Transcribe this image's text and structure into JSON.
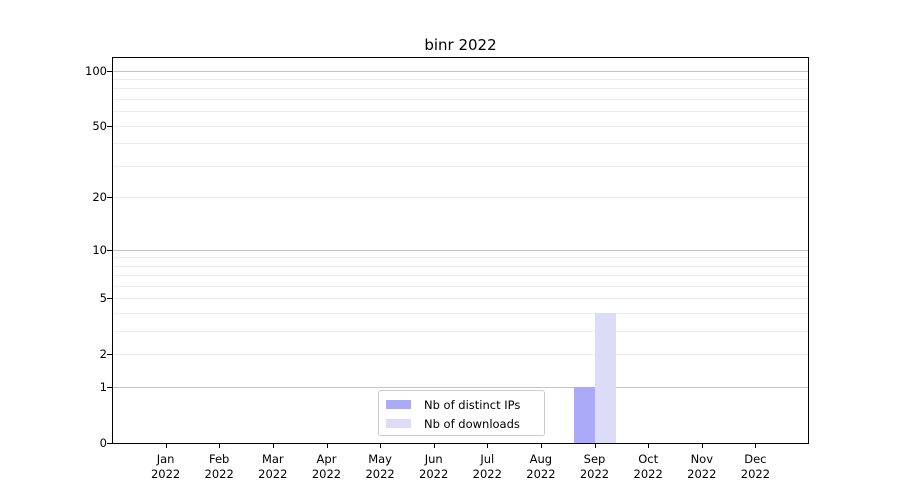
{
  "figure": {
    "background": "#ffffff"
  },
  "chart_data": {
    "type": "bar",
    "title": "binr 2022",
    "categories": [
      "Jan 2022",
      "Feb 2022",
      "Mar 2022",
      "Apr 2022",
      "May 2022",
      "Jun 2022",
      "Jul 2022",
      "Aug 2022",
      "Sep 2022",
      "Oct 2022",
      "Nov 2022",
      "Dec 2022"
    ],
    "series": [
      {
        "name": "Nb of distinct IPs",
        "color": "#abaaf8",
        "values": [
          0,
          0,
          0,
          0,
          0,
          0,
          0,
          0,
          1,
          0,
          0,
          0
        ]
      },
      {
        "name": "Nb of downloads",
        "color": "#dcdcf8",
        "values": [
          0,
          0,
          0,
          0,
          0,
          0,
          0,
          0,
          4,
          0,
          0,
          0
        ]
      }
    ],
    "xlabel": "",
    "ylabel": "",
    "yscale": "log1p",
    "ylim": [
      0,
      117
    ],
    "yticks": [
      0,
      1,
      2,
      5,
      10,
      20,
      50,
      100
    ],
    "grid": {
      "minor_values": [
        2,
        3,
        4,
        5,
        6,
        7,
        8,
        9,
        20,
        30,
        40,
        50,
        60,
        70,
        80,
        90
      ],
      "major_values": [
        1,
        10,
        100
      ],
      "minor_color": "#ededed",
      "major_color": "#c4c4c4"
    },
    "axis_color": "#000000",
    "legend": {
      "position": "bottom-center",
      "border_color": "#cccccc",
      "background": "#ffffff"
    }
  }
}
